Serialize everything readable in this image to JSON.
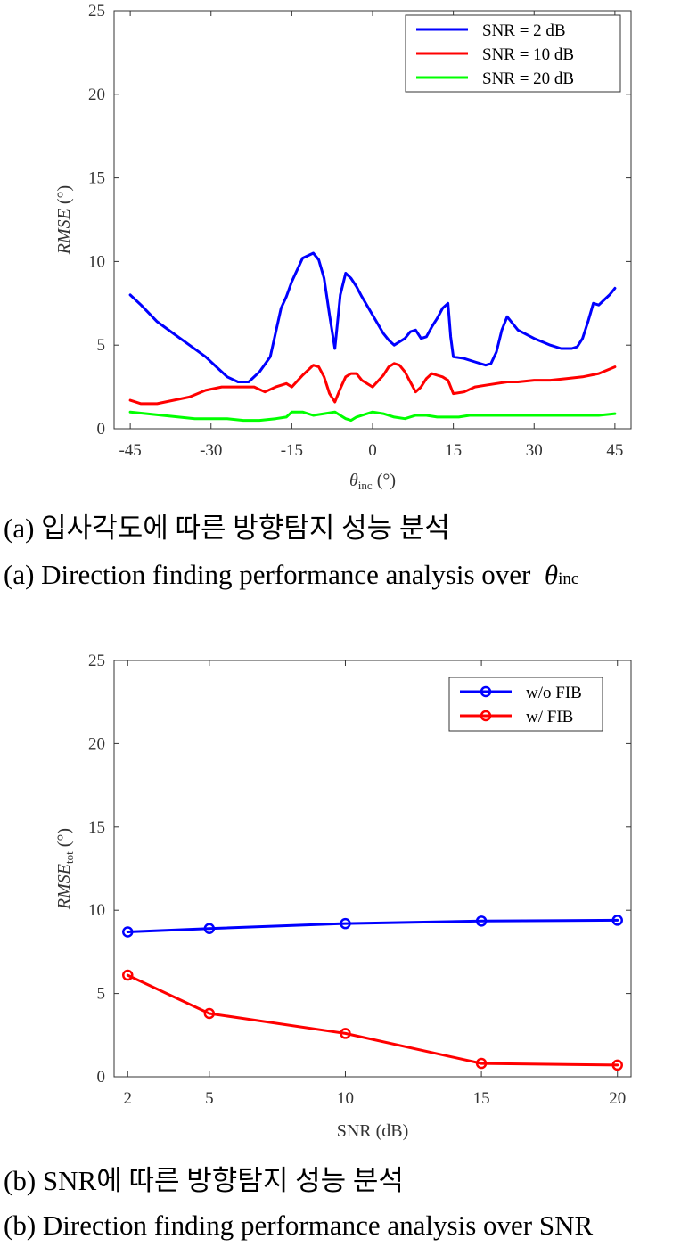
{
  "charts": [
    {
      "type": "line",
      "xlabel": {
        "symbol": "θ",
        "sub": "inc",
        "unit": " (°)"
      },
      "ylabel": {
        "main": "RMSE",
        "sub": "",
        "unit": " (°)"
      },
      "xlim": [
        -48,
        48
      ],
      "ylim": [
        0,
        25
      ],
      "xticks": [
        -45,
        -30,
        -15,
        0,
        15,
        30,
        45
      ],
      "xtick_labels": [
        "-45",
        "-30",
        "-15",
        "0",
        "15",
        "30",
        "45"
      ],
      "yticks": [
        0,
        5,
        10,
        15,
        20,
        25
      ],
      "ytick_labels": [
        "0",
        "5",
        "10",
        "15",
        "20",
        "25"
      ],
      "legend_position": "top-right",
      "markers": false,
      "series": [
        {
          "name": "SNR = 2 dB",
          "color": "#0000ff",
          "x": [
            -45,
            -43,
            -40,
            -37,
            -34,
            -31,
            -29,
            -27,
            -25,
            -23,
            -21,
            -19,
            -17,
            -16,
            -15,
            -13,
            -11,
            -10,
            -9,
            -8,
            -7,
            -6,
            -5,
            -4,
            -3,
            -2,
            0,
            2,
            3,
            4,
            6,
            7,
            8,
            9,
            10,
            11,
            12,
            13,
            14,
            14.5,
            15,
            17,
            19,
            21,
            22,
            23,
            24,
            25,
            27,
            30,
            33,
            35,
            36,
            37,
            38,
            39,
            40,
            41,
            42,
            43,
            44,
            45
          ],
          "y": [
            8.0,
            7.4,
            6.4,
            5.7,
            5.0,
            4.3,
            3.7,
            3.1,
            2.8,
            2.8,
            3.4,
            4.3,
            7.2,
            7.9,
            8.8,
            10.2,
            10.5,
            10.1,
            9.0,
            6.8,
            4.8,
            8.0,
            9.3,
            9.0,
            8.5,
            7.9,
            6.8,
            5.7,
            5.3,
            5.0,
            5.4,
            5.8,
            5.9,
            5.4,
            5.5,
            6.1,
            6.6,
            7.2,
            7.5,
            5.5,
            4.3,
            4.2,
            4.0,
            3.8,
            3.9,
            4.6,
            5.9,
            6.7,
            5.9,
            5.4,
            5.0,
            4.8,
            4.8,
            4.8,
            4.9,
            5.4,
            6.4,
            7.5,
            7.4,
            7.7,
            8.0,
            8.4
          ]
        },
        {
          "name": "SNR = 10 dB",
          "color": "#ff0000",
          "x": [
            -45,
            -43,
            -40,
            -37,
            -34,
            -31,
            -28,
            -25,
            -22,
            -20,
            -18,
            -16,
            -15,
            -13,
            -11,
            -10,
            -9,
            -8,
            -7,
            -6,
            -5,
            -4,
            -3,
            -2,
            0,
            2,
            3,
            4,
            5,
            6,
            7,
            8,
            9,
            10,
            11,
            12,
            13,
            14,
            15,
            17,
            19,
            21,
            23,
            25,
            27,
            30,
            33,
            36,
            39,
            42,
            45
          ],
          "y": [
            1.7,
            1.5,
            1.5,
            1.7,
            1.9,
            2.3,
            2.5,
            2.5,
            2.5,
            2.2,
            2.5,
            2.7,
            2.5,
            3.2,
            3.8,
            3.7,
            3.1,
            2.1,
            1.6,
            2.4,
            3.1,
            3.3,
            3.3,
            2.9,
            2.5,
            3.2,
            3.7,
            3.9,
            3.8,
            3.4,
            2.8,
            2.2,
            2.5,
            3.0,
            3.3,
            3.2,
            3.1,
            2.9,
            2.1,
            2.2,
            2.5,
            2.6,
            2.7,
            2.8,
            2.8,
            2.9,
            2.9,
            3.0,
            3.1,
            3.3,
            3.7
          ]
        },
        {
          "name": "SNR = 20 dB",
          "color": "#00ff00",
          "x": [
            -45,
            -42,
            -39,
            -36,
            -33,
            -30,
            -27,
            -24,
            -21,
            -18,
            -16,
            -15,
            -13,
            -11,
            -9,
            -7,
            -6,
            -5,
            -4,
            -3,
            -1,
            0,
            2,
            4,
            6,
            8,
            10,
            12,
            14,
            16,
            18,
            21,
            24,
            27,
            30,
            33,
            36,
            39,
            42,
            45
          ],
          "y": [
            1.0,
            0.9,
            0.8,
            0.7,
            0.6,
            0.6,
            0.6,
            0.5,
            0.5,
            0.6,
            0.7,
            1.0,
            1.0,
            0.8,
            0.9,
            1.0,
            0.8,
            0.6,
            0.5,
            0.7,
            0.9,
            1.0,
            0.9,
            0.7,
            0.6,
            0.8,
            0.8,
            0.7,
            0.7,
            0.7,
            0.8,
            0.8,
            0.8,
            0.8,
            0.8,
            0.8,
            0.8,
            0.8,
            0.8,
            0.9
          ]
        }
      ]
    },
    {
      "type": "line",
      "xlabel": {
        "symbol": "",
        "sub": "",
        "unit": "SNR (dB)"
      },
      "ylabel": {
        "main": "RMSE",
        "sub": "tot",
        "unit": " (°)"
      },
      "xlim": [
        1.5,
        20.5
      ],
      "ylim": [
        0,
        25
      ],
      "xticks": [
        2,
        5,
        10,
        15,
        20
      ],
      "xtick_labels": [
        "2",
        "5",
        "10",
        "15",
        "20"
      ],
      "yticks": [
        0,
        5,
        10,
        15,
        20,
        25
      ],
      "ytick_labels": [
        "0",
        "5",
        "10",
        "15",
        "20",
        "25"
      ],
      "legend_position": "top-right",
      "markers": true,
      "series": [
        {
          "name": "w/o FIB",
          "color": "#0000ff",
          "x": [
            2,
            5,
            10,
            15,
            20
          ],
          "y": [
            8.7,
            8.9,
            9.2,
            9.35,
            9.4
          ]
        },
        {
          "name": "w/ FIB",
          "color": "#ff0000",
          "x": [
            2,
            5,
            10,
            15,
            20
          ],
          "y": [
            6.1,
            3.8,
            2.6,
            0.8,
            0.7
          ]
        }
      ]
    }
  ],
  "captions": {
    "a_korean": "(a) 입사각도에 따른 방향탐지 성능 분석",
    "a_english_text": "(a) Direction finding performance analysis over",
    "a_symbol": "θ",
    "a_sub": "inc",
    "b_korean": "(b) SNR에 따른 방향탐지 성능 분석",
    "b_english": "(b) Direction finding performance analysis over SNR"
  }
}
